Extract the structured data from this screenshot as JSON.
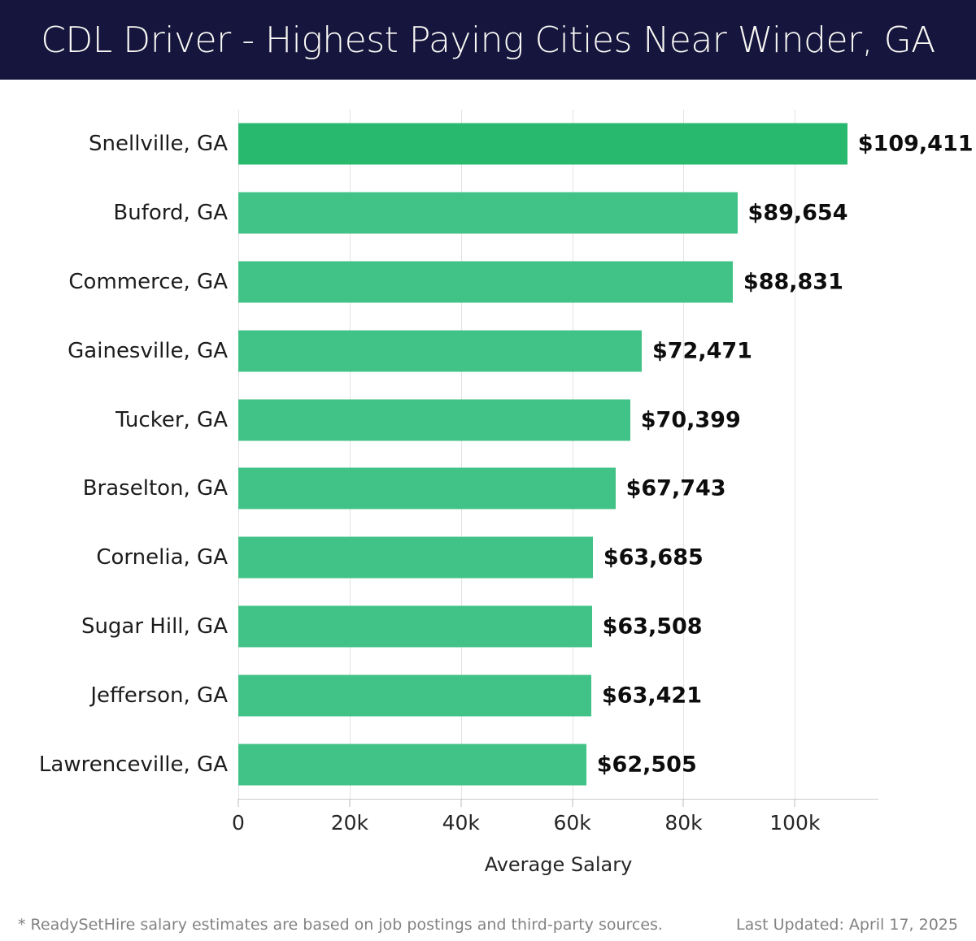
{
  "header": {
    "title": "CDL Driver - Highest Paying Cities Near Winder, GA",
    "bg_color": "#15153d",
    "text_color": "#faf9f5"
  },
  "chart_data": {
    "type": "bar",
    "orientation": "horizontal",
    "title": "CDL Driver - Highest Paying Cities Near Winder, GA",
    "categories": [
      "Snellville, GA",
      "Buford, GA",
      "Commerce, GA",
      "Gainesville, GA",
      "Tucker, GA",
      "Braselton, GA",
      "Cornelia, GA",
      "Sugar Hill, GA",
      "Jefferson, GA",
      "Lawrenceville, GA"
    ],
    "values": [
      109411,
      89654,
      88831,
      72471,
      70399,
      67743,
      63685,
      63508,
      63421,
      62505
    ],
    "value_labels": [
      "$109,411",
      "$89,654",
      "$88,831",
      "$72,471",
      "$70,399",
      "$67,743",
      "$63,685",
      "$63,508",
      "$63,421",
      "$62,505"
    ],
    "xlabel": "Average Salary",
    "xlim": [
      0,
      115000
    ],
    "xticks": [
      0,
      20000,
      40000,
      60000,
      80000,
      100000
    ],
    "xtick_labels": [
      "0",
      "20k",
      "40k",
      "60k",
      "80k",
      "100k"
    ],
    "grid": true,
    "legend": "none",
    "highlight_index": 0,
    "bar_color_highlight": "#29b96e",
    "bar_color": "#41c287",
    "grid_color": "#e3e3e3",
    "axis_color": "#cccccc"
  },
  "footer": {
    "disclaimer": "* ReadySetHire salary estimates are based on job postings and third-party sources.",
    "last_updated": "Last Updated: April 17, 2025"
  }
}
